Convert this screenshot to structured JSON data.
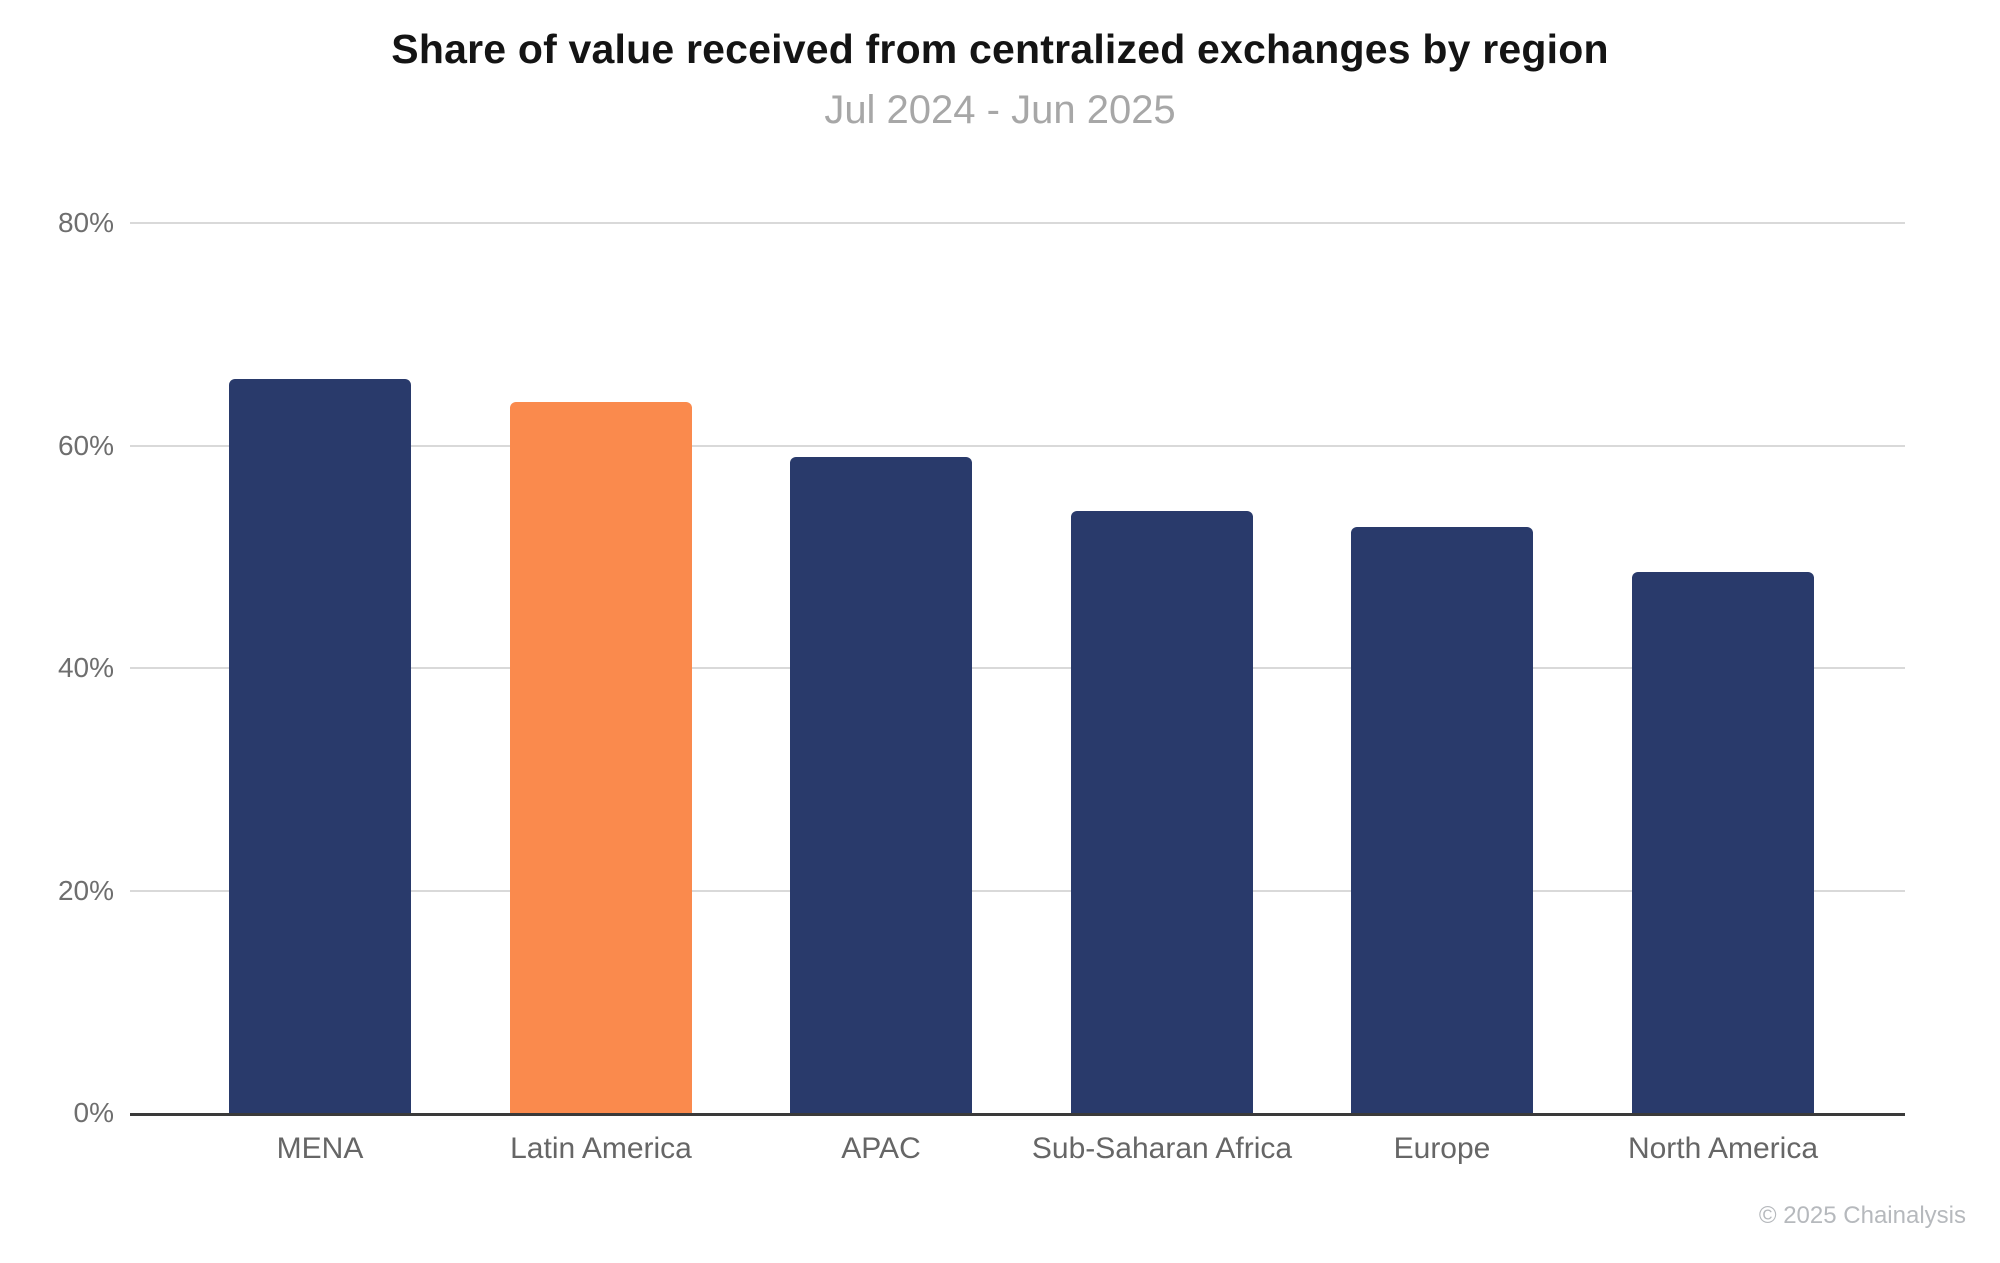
{
  "chart_data": {
    "type": "bar",
    "title": "Share of value received from centralized exchanges by region",
    "subtitle": "Jul 2024 - Jun 2025",
    "categories": [
      "MENA",
      "Latin America",
      "APAC",
      "Sub-Saharan Africa",
      "Europe",
      "North America"
    ],
    "values": [
      66.0,
      63.9,
      59.0,
      54.1,
      52.7,
      48.6
    ],
    "value_unit": "%",
    "ylim": [
      0,
      80
    ],
    "yticks": [
      0,
      20,
      40,
      60,
      80
    ],
    "ytick_format": "{v}%",
    "xlabel": "",
    "ylabel": "",
    "grid": "horizontal",
    "legend": "none",
    "highlight_index": 1,
    "colors": {
      "bar_default": "#293a6b",
      "bar_highlight": "#fa8a4d",
      "gridline": "#d9d9d9",
      "axis_line": "#3a3a3a",
      "title": "#141414",
      "subtitle": "#a7a7a7",
      "tick_label": "#6e6e6e"
    }
  },
  "footer": {
    "copyright": "© 2025 Chainalysis"
  }
}
